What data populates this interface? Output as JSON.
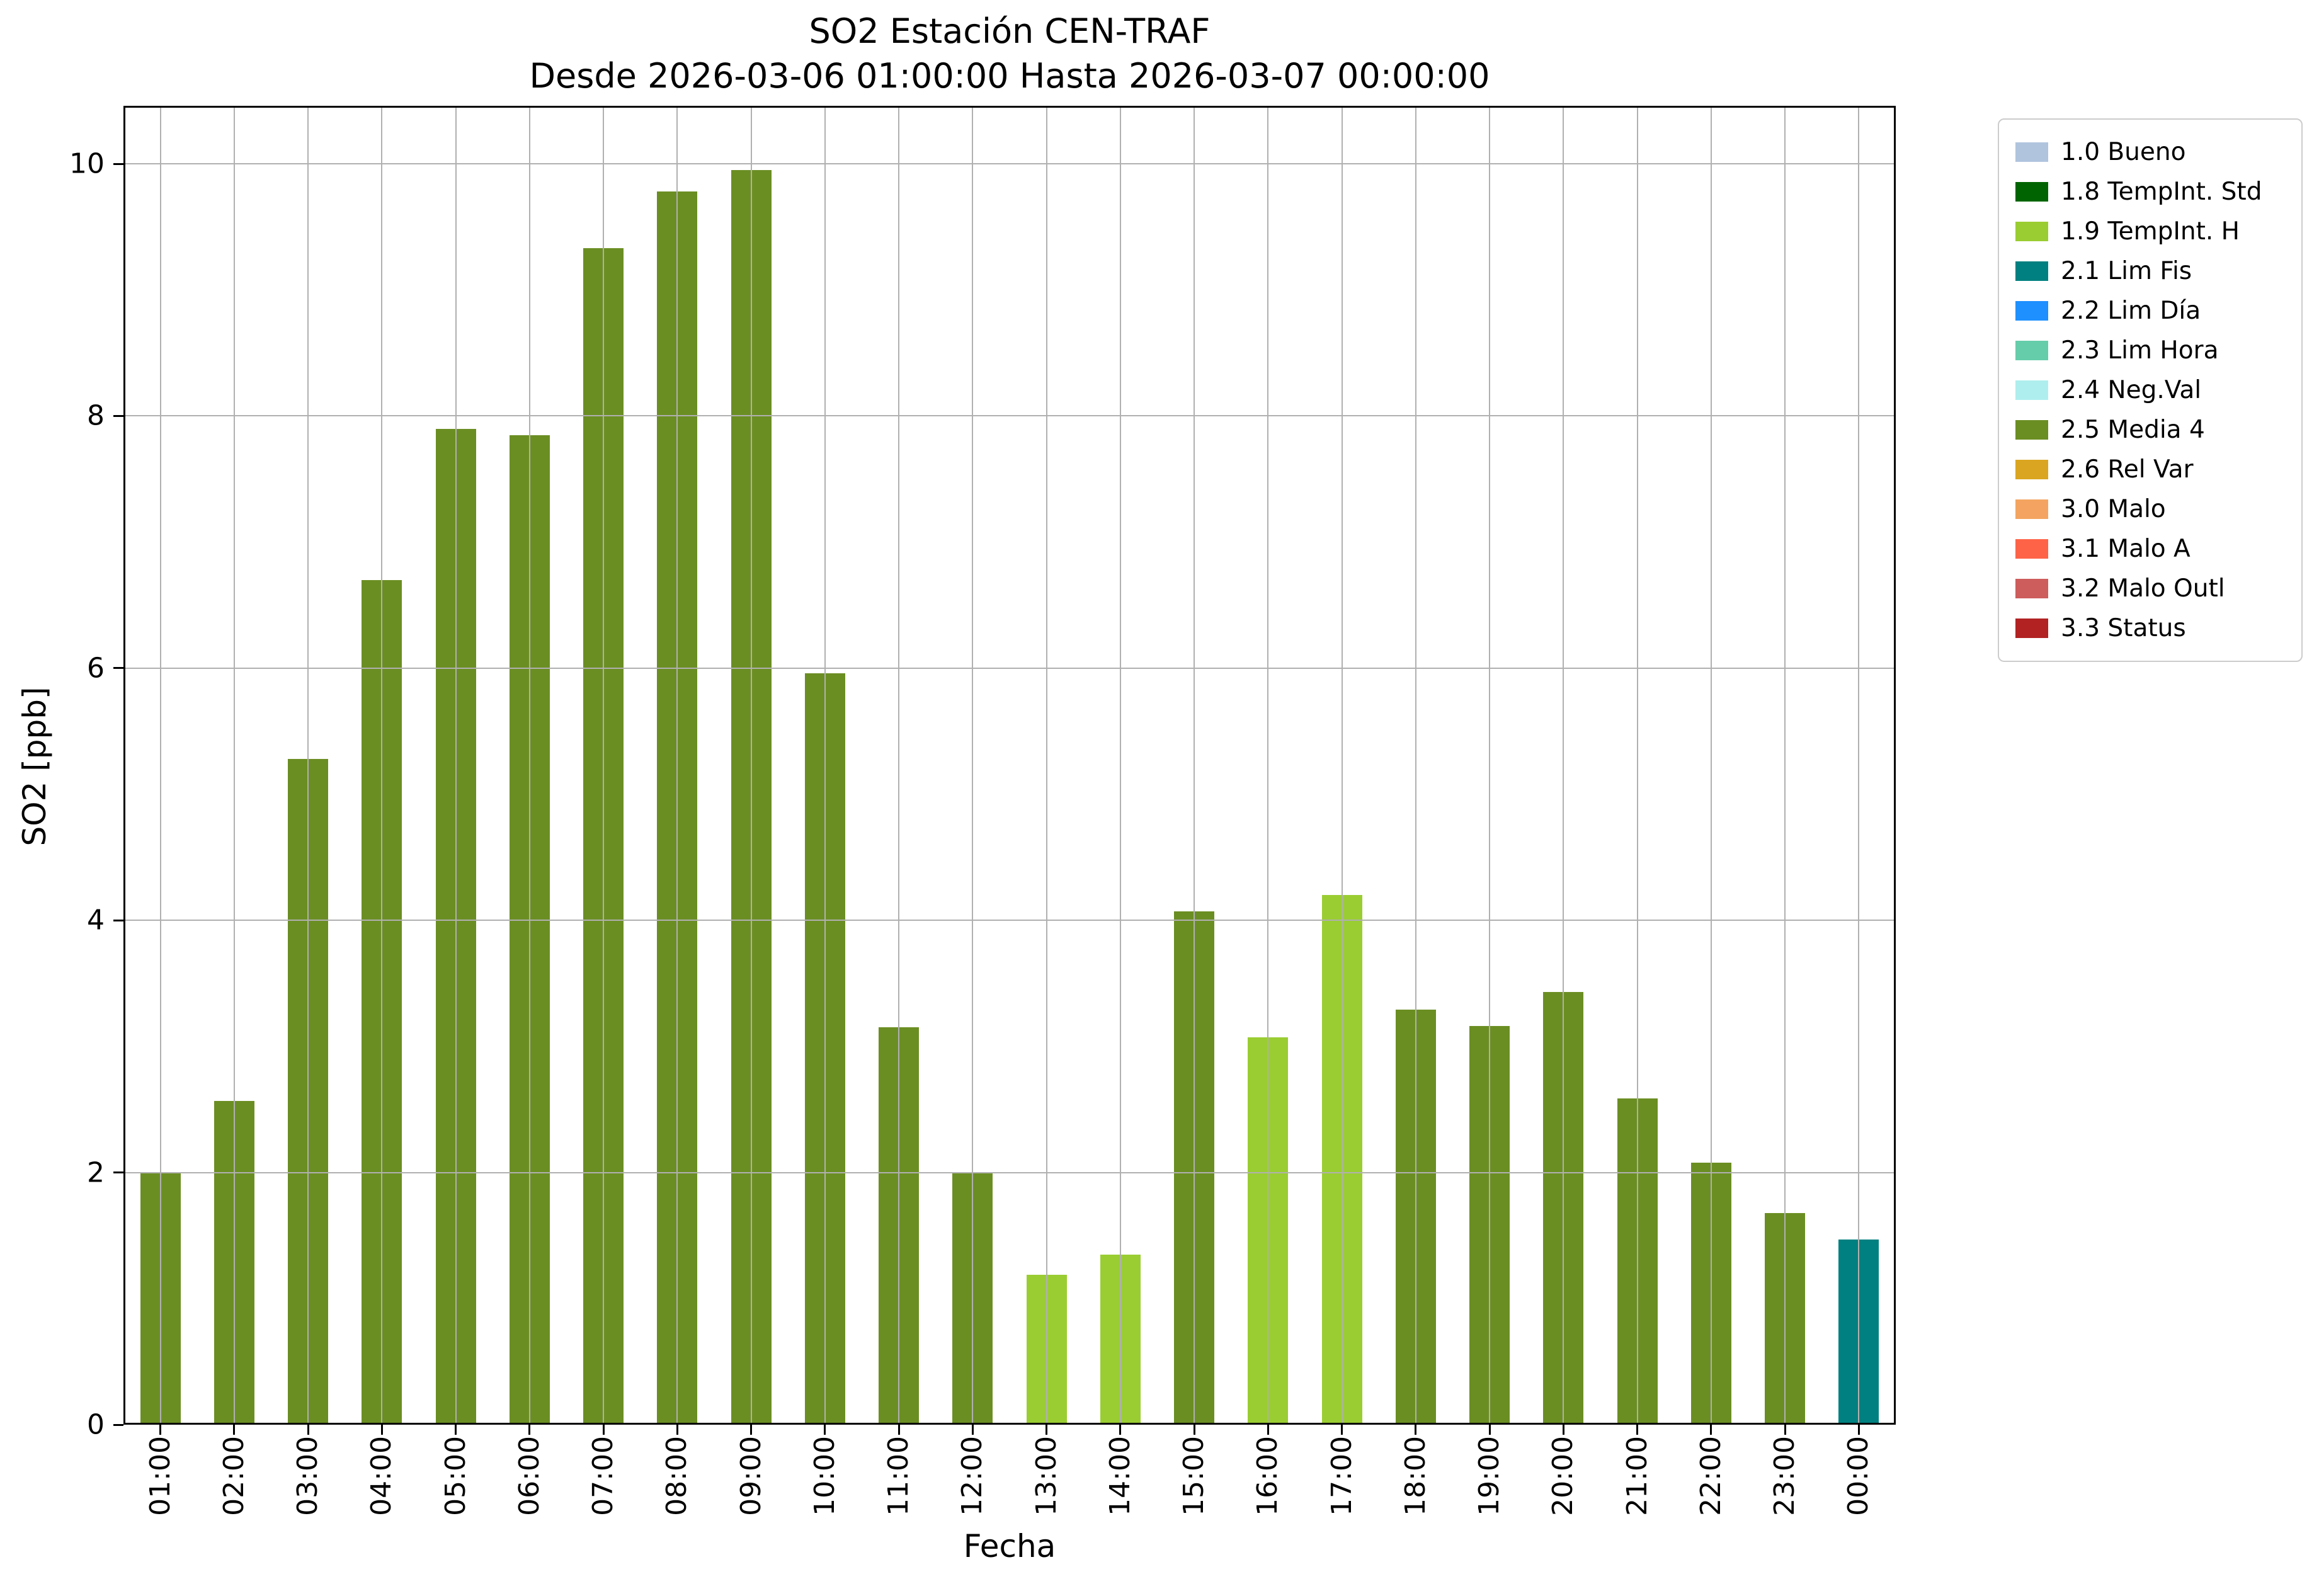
{
  "chart_data": {
    "type": "bar",
    "title": "SO2 Estación CEN-TRAF",
    "subtitle": "Desde 2026-03-06 01:00:00 Hasta 2026-03-07 00:00:00",
    "xlabel": "Fecha",
    "ylabel": "SO2 [ppb]",
    "ylim": [
      0,
      10.46
    ],
    "yticks": [
      0,
      2,
      4,
      6,
      8,
      10
    ],
    "grid": true,
    "grid_color": "#b0b0b0",
    "legend_position": "outside-right-top",
    "categories": [
      "01:00",
      "02:00",
      "03:00",
      "04:00",
      "05:00",
      "06:00",
      "07:00",
      "08:00",
      "09:00",
      "10:00",
      "11:00",
      "12:00",
      "13:00",
      "14:00",
      "15:00",
      "16:00",
      "17:00",
      "18:00",
      "19:00",
      "20:00",
      "21:00",
      "22:00",
      "23:00",
      "00:00"
    ],
    "values": [
      2.0,
      2.57,
      5.28,
      6.7,
      7.9,
      7.85,
      9.33,
      9.78,
      9.95,
      5.96,
      3.15,
      2.0,
      1.19,
      1.35,
      4.07,
      3.07,
      4.2,
      3.29,
      3.16,
      3.43,
      2.59,
      2.08,
      1.68,
      1.47
    ],
    "bar_status": [
      "2.5 Media 4",
      "2.5 Media 4",
      "2.5 Media 4",
      "2.5 Media 4",
      "2.5 Media 4",
      "2.5 Media 4",
      "2.5 Media 4",
      "2.5 Media 4",
      "2.5 Media 4",
      "2.5 Media 4",
      "2.5 Media 4",
      "2.5 Media 4",
      "1.9 TempInt. H",
      "1.9 TempInt. H",
      "2.5 Media 4",
      "1.9 TempInt. H",
      "1.9 TempInt. H",
      "2.5 Media 4",
      "2.5 Media 4",
      "2.5 Media 4",
      "2.5 Media 4",
      "2.5 Media 4",
      "2.5 Media 4",
      "2.1 Lim Fis"
    ],
    "status_colors": {
      "2.5 Media 4": "#6b8e23",
      "1.9 TempInt. H": "#9acd32",
      "2.1 Lim Fis": "#008080"
    }
  },
  "legend": {
    "items": [
      {
        "label": "1.0 Bueno",
        "color": "#b0c4de"
      },
      {
        "label": "1.8 TempInt. Std",
        "color": "#006400"
      },
      {
        "label": "1.9 TempInt. H",
        "color": "#9acd32"
      },
      {
        "label": "2.1 Lim Fis",
        "color": "#008080"
      },
      {
        "label": "2.2 Lim Día",
        "color": "#1e90ff"
      },
      {
        "label": "2.3 Lim Hora",
        "color": "#66cdaa"
      },
      {
        "label": "2.4 Neg.Val",
        "color": "#afeeee"
      },
      {
        "label": "2.5 Media 4",
        "color": "#6b8e23"
      },
      {
        "label": "2.6 Rel Var",
        "color": "#daa520"
      },
      {
        "label": "3.0 Malo",
        "color": "#f4a460"
      },
      {
        "label": "3.1 Malo A",
        "color": "#ff6347"
      },
      {
        "label": "3.2 Malo Outl",
        "color": "#cd5c5c"
      },
      {
        "label": "3.3 Status",
        "color": "#b22222"
      }
    ]
  }
}
